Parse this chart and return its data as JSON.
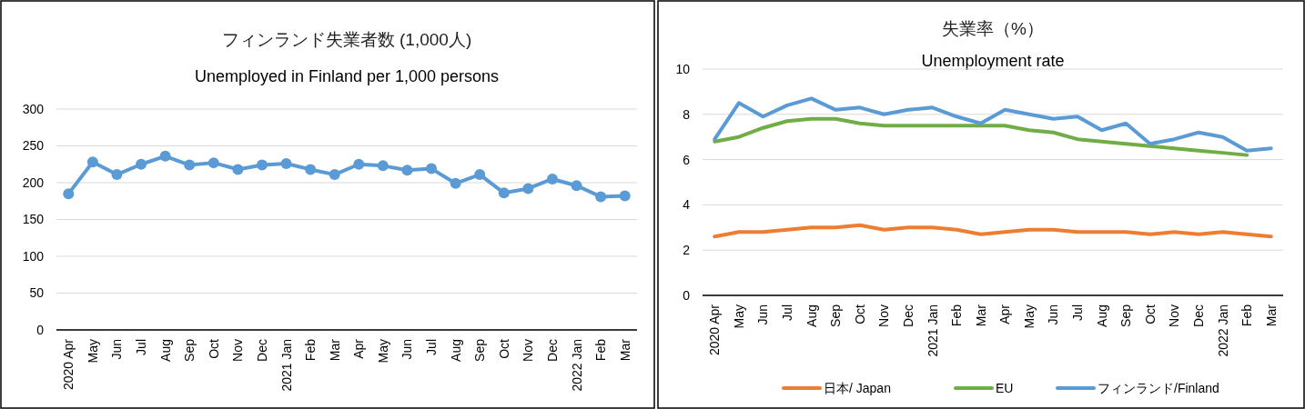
{
  "chart_data": [
    {
      "type": "line",
      "title": "フィンランド失業者数 (1,000人)",
      "subtitle": "Unemployed in Finland per 1,000 persons",
      "categories": [
        "2020 Apr",
        "May",
        "Jun",
        "Jul",
        "Aug",
        "Sep",
        "Oct",
        "Nov",
        "Dec",
        "2021 Jan",
        "Feb",
        "Mar",
        "Apr",
        "May",
        "Jun",
        "Jul",
        "Aug",
        "Sep",
        "Oct",
        "Nov",
        "Dec",
        "2022 Jan",
        "Feb",
        "Mar"
      ],
      "series": [
        {
          "color": "#5b9bd5",
          "values": [
            185,
            228,
            211,
            225,
            236,
            224,
            227,
            218,
            224,
            226,
            218,
            211,
            225,
            223,
            217,
            219,
            199,
            211,
            186,
            192,
            205,
            196,
            181,
            182
          ]
        }
      ],
      "ylim": [
        0,
        300
      ],
      "yticks": [
        0,
        50,
        100,
        150,
        200,
        250,
        300
      ],
      "grid": "y",
      "marker": "circle",
      "legend": false
    },
    {
      "type": "line",
      "title": "失業率（%）",
      "subtitle": "Unemployment rate",
      "categories": [
        "2020 Apr",
        "May",
        "Jun",
        "Jul",
        "Aug",
        "Sep",
        "Oct",
        "Nov",
        "Dec",
        "2021 Jan",
        "Feb",
        "Mar",
        "Apr",
        "May",
        "Jun",
        "Jul",
        "Aug",
        "Sep",
        "Oct",
        "Nov",
        "Dec",
        "2022 Jan",
        "Feb",
        "Mar"
      ],
      "series": [
        {
          "name": "日本/ Japan",
          "color": "#ed7d31",
          "values": [
            2.6,
            2.8,
            2.8,
            2.9,
            3.0,
            3.0,
            3.1,
            2.9,
            3.0,
            3.0,
            2.9,
            2.7,
            2.8,
            2.9,
            2.9,
            2.8,
            2.8,
            2.8,
            2.7,
            2.8,
            2.7,
            2.8,
            2.7,
            2.6
          ]
        },
        {
          "name": "EU",
          "color": "#70ad47",
          "values": [
            6.8,
            7.0,
            7.4,
            7.7,
            7.8,
            7.8,
            7.6,
            7.5,
            7.5,
            7.5,
            7.5,
            7.5,
            7.5,
            7.3,
            7.2,
            6.9,
            6.8,
            6.7,
            6.6,
            6.5,
            6.4,
            6.3,
            6.2,
            null
          ]
        },
        {
          "name": "フィンランド/Finland",
          "color": "#5b9bd5",
          "values": [
            6.9,
            8.5,
            7.9,
            8.4,
            8.7,
            8.2,
            8.3,
            8.0,
            8.2,
            8.3,
            7.9,
            7.6,
            8.2,
            8.0,
            7.8,
            7.9,
            7.3,
            7.6,
            6.7,
            6.9,
            7.2,
            7.0,
            6.4,
            6.5
          ]
        }
      ],
      "ylim": [
        0,
        10
      ],
      "yticks": [
        0,
        2,
        4,
        6,
        8,
        10
      ],
      "grid": "y",
      "marker": "none",
      "legend": "bottom"
    }
  ]
}
